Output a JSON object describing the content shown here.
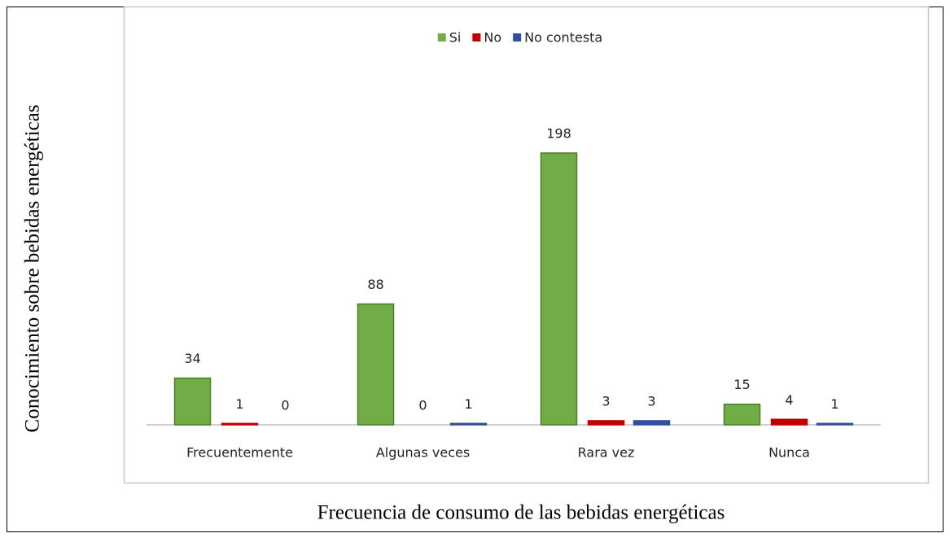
{
  "chart_data": {
    "type": "bar",
    "x_label": "Frecuencia de consumo de las bebidas energéticas",
    "y_label": "Conocimiento sobre bebidas energéticas",
    "categories": [
      "Frecuentemente",
      "Algunas veces",
      "Rara vez",
      "Nunca"
    ],
    "series": [
      {
        "name": "Si",
        "color": "#70ad47",
        "values": [
          34,
          88,
          198,
          15
        ]
      },
      {
        "name": "No",
        "color": "#c00000",
        "values": [
          1,
          0,
          3,
          4
        ]
      },
      {
        "name": "No contesta",
        "color": "#2f4fa0",
        "values": [
          0,
          1,
          3,
          1
        ]
      }
    ],
    "legend": "top"
  }
}
